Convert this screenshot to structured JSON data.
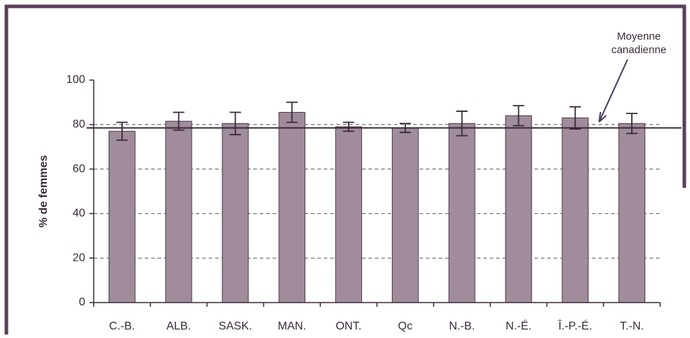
{
  "chart_data": {
    "type": "bar",
    "y_label": "% de femmes",
    "annotation": [
      "Moyenne",
      "canadienne"
    ],
    "categories": [
      "C.-B.",
      "ALB.",
      "SASK.",
      "MAN.",
      "ONT.",
      "Qc",
      "N.-B.",
      "N.-É.",
      "Î.-P.-É.",
      "T.-N."
    ],
    "values": [
      77,
      81.5,
      80.5,
      85.5,
      79,
      78.5,
      80.5,
      84,
      83,
      80.5
    ],
    "errors": [
      4,
      4,
      5,
      4.5,
      2,
      2,
      5.5,
      4.5,
      5,
      4.5
    ],
    "reference_line": 78.5,
    "color": "#a08c9a",
    "ylim": [
      0,
      100
    ],
    "yticks": [
      0,
      20,
      40,
      60,
      80,
      100
    ],
    "grid": true
  }
}
